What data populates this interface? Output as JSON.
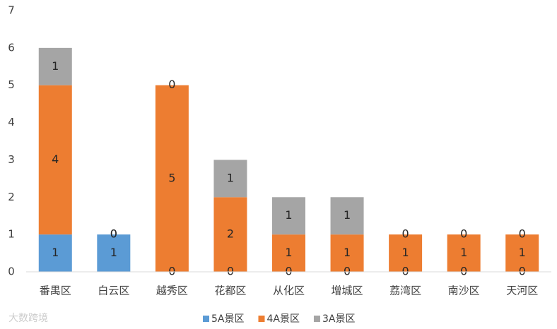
{
  "chart_data": {
    "type": "stacked_bar",
    "categories": [
      "番禺区",
      "白云区",
      "越秀区",
      "花都区",
      "从化区",
      "增城区",
      "荔湾区",
      "南沙区",
      "天河区"
    ],
    "series": [
      {
        "name": "5A景区",
        "color": "#5b9bd5",
        "values": [
          1,
          1,
          0,
          0,
          0,
          0,
          0,
          0,
          0
        ]
      },
      {
        "name": "4A景区",
        "color": "#ed7d31",
        "values": [
          4,
          0,
          5,
          2,
          1,
          1,
          1,
          1,
          1
        ]
      },
      {
        "name": "3A景区",
        "color": "#a5a5a5",
        "values": [
          1,
          0,
          0,
          1,
          1,
          1,
          0,
          0,
          0
        ]
      }
    ],
    "ylim": [
      0,
      7
    ],
    "yticks": [
      0,
      1,
      2,
      3,
      4,
      5,
      6,
      7
    ],
    "grid": false,
    "legend": "bottom",
    "data_labels": true
  },
  "watermark": "大数跨境"
}
